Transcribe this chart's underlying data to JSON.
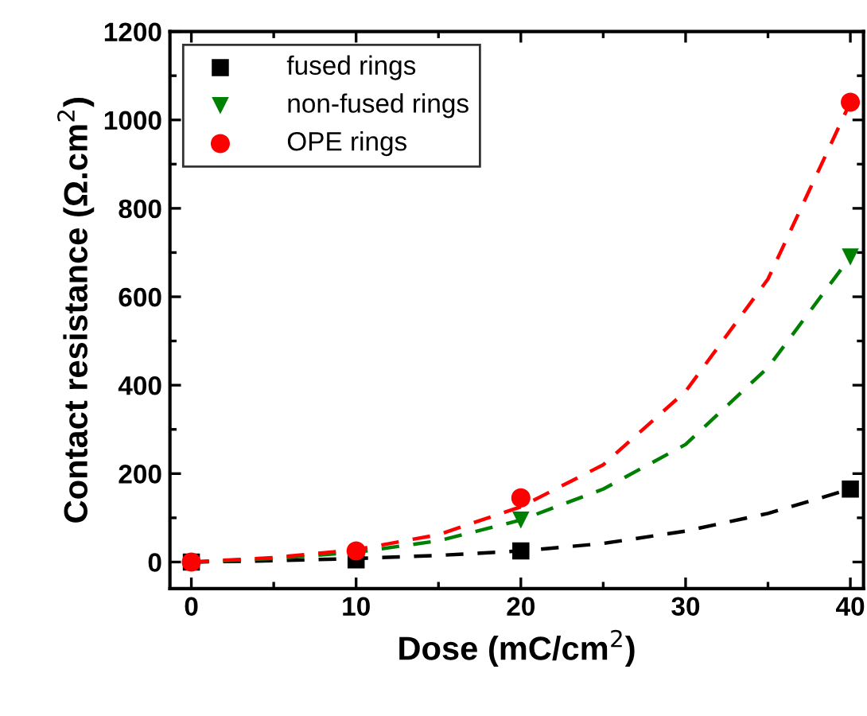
{
  "chart_data": {
    "type": "scatter",
    "xlabel": "Dose (mC/cm$^{2}$)",
    "ylabel": "Contact resistance (Ω.cm$^{2}$)",
    "xlim": [
      -1.3,
      40.8
    ],
    "xticks": [
      0,
      10,
      20,
      30,
      40
    ],
    "ylim": [
      -60,
      1200
    ],
    "yticks": [
      0,
      200,
      400,
      600,
      800,
      1000,
      1200
    ],
    "legend": "top left",
    "grid": false,
    "series": [
      {
        "name": "fused rings",
        "color": "#000000",
        "marker": "square",
        "x": [
          0,
          10,
          20,
          40
        ],
        "values": [
          0,
          5,
          25,
          165
        ]
      },
      {
        "name": "non-fused rings",
        "color": "#008000",
        "marker": "triangle",
        "x": [
          20,
          40
        ],
        "values": [
          95,
          690
        ]
      },
      {
        "name": "OPE rings",
        "color": "#ff0000",
        "marker": "circle",
        "x": [
          0,
          10,
          20,
          40
        ],
        "values": [
          0,
          25,
          145,
          1040
        ]
      },
      {
        "type": "line",
        "color": "#000000",
        "line_style": "dashed",
        "x": [
          0,
          5,
          10,
          15,
          20,
          25,
          30,
          35,
          40
        ],
        "values": [
          0,
          3,
          8,
          15,
          25,
          42,
          70,
          110,
          165
        ]
      },
      {
        "type": "line",
        "color": "#008000",
        "line_style": "dashed",
        "x": [
          0,
          5,
          10,
          15,
          20,
          25,
          30,
          35,
          40
        ],
        "values": [
          0,
          8,
          22,
          48,
          95,
          165,
          266,
          440,
          690
        ]
      },
      {
        "type": "line",
        "color": "#ff0000",
        "line_style": "dashed",
        "x": [
          0,
          5,
          10,
          15,
          20,
          25,
          30,
          35,
          40
        ],
        "values": [
          0,
          10,
          28,
          62,
          125,
          220,
          386,
          640,
          1040
        ]
      }
    ]
  }
}
